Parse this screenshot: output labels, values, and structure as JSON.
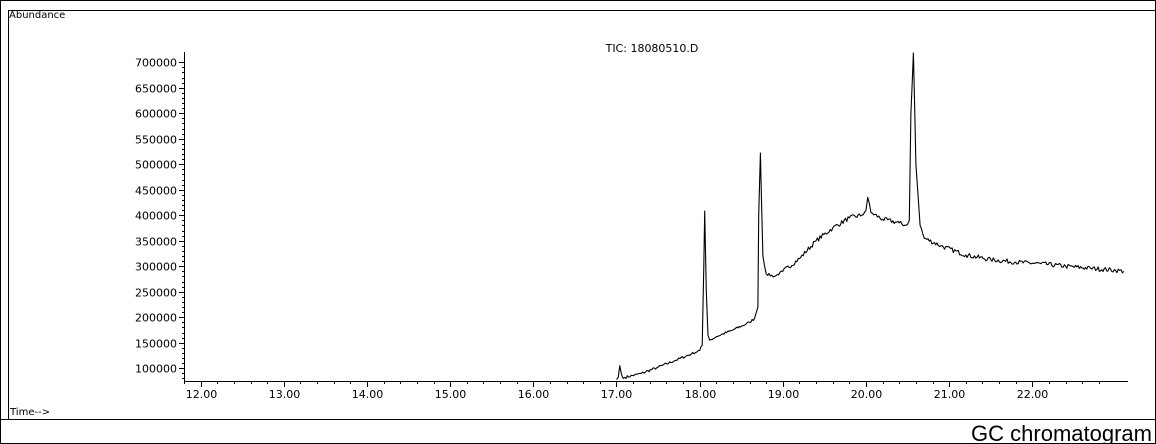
{
  "caption": "GC chromatogram",
  "chart_data": {
    "type": "line",
    "title": "TIC: 18080510.D",
    "ylabel": "Abundance",
    "xlabel": "Time-->",
    "xlim": [
      11.8,
      23.15
    ],
    "ylim": [
      75000,
      720000
    ],
    "x_ticks": [
      12,
      13,
      14,
      15,
      16,
      17,
      18,
      19,
      20,
      21,
      22
    ],
    "x_tick_labels": [
      "12.00",
      "13.00",
      "14.00",
      "15.00",
      "16.00",
      "17.00",
      "18.00",
      "19.00",
      "20.00",
      "21.00",
      "22.00"
    ],
    "y_ticks": [
      100000,
      150000,
      200000,
      250000,
      300000,
      350000,
      400000,
      450000,
      500000,
      550000,
      600000,
      650000,
      700000
    ],
    "y_tick_labels": [
      "100000",
      "150000",
      "200000",
      "250000",
      "300000",
      "350000",
      "400000",
      "450000",
      "500000",
      "550000",
      "600000",
      "650000",
      "700000"
    ],
    "grid": false,
    "legend": "none",
    "line_color": "#000000",
    "series": [
      {
        "x": [
          17.0,
          17.02,
          17.04,
          17.06,
          17.08,
          17.1,
          17.3,
          17.5,
          17.7,
          17.9,
          18.0,
          18.03,
          18.05,
          18.06,
          18.08,
          18.1,
          18.12,
          18.2,
          18.4,
          18.6,
          18.66,
          18.7,
          18.71,
          18.73,
          18.76,
          18.8,
          18.9,
          19.0,
          19.2,
          19.4,
          19.6,
          19.8,
          19.95,
          20.0,
          20.02,
          20.06,
          20.2,
          20.4,
          20.48,
          20.52,
          20.54,
          20.57,
          20.6,
          20.65,
          20.7,
          20.9,
          21.2,
          21.5,
          21.8,
          22.1,
          22.4,
          22.7,
          23.0,
          23.1
        ],
        "y": [
          78000,
          82000,
          105000,
          88000,
          80000,
          82000,
          90000,
          102000,
          115000,
          128000,
          135000,
          145000,
          300000,
          408000,
          250000,
          165000,
          155000,
          162000,
          175000,
          190000,
          198000,
          220000,
          400000,
          522000,
          320000,
          285000,
          280000,
          290000,
          315000,
          350000,
          375000,
          395000,
          400000,
          410000,
          435000,
          405000,
          392000,
          385000,
          380000,
          390000,
          600000,
          718000,
          500000,
          380000,
          355000,
          340000,
          322000,
          313000,
          308000,
          305000,
          300000,
          296000,
          292000,
          290000
        ]
      }
    ]
  }
}
